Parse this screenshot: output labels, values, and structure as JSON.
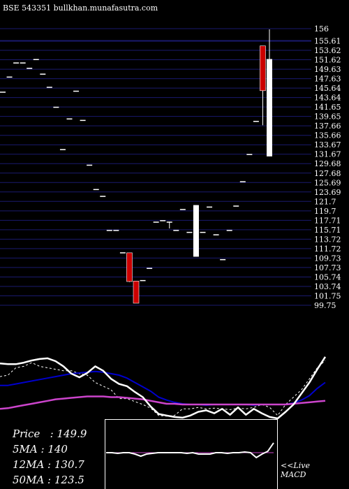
{
  "header": {
    "title": "BSE 543351 bullkhan.munafasutra.com"
  },
  "info": {
    "price": "Price   : 149.9",
    "ma5": "5MA : 140",
    "ma12": "12MA : 130.7",
    "ma50": "50MA : 123.5"
  },
  "macd_labels": {
    "live": "<<Live",
    "macd": "MACD"
  },
  "colors": {
    "background": "#000000",
    "grid": "#1a1a6e",
    "up_candle": "#ffffff",
    "down_candle": "#cc0000",
    "ma_fast": "#0000cc",
    "ma_slow": "#cc44cc",
    "signal": "#ffffff"
  },
  "chart_data": [
    {
      "type": "candlestick",
      "title": "BSE 543351 bullkhan.munafasutra.com",
      "ylim": [
        99.75,
        156
      ],
      "y_tick_labels": [
        "156",
        "155.61",
        "153.62",
        "151.62",
        "149.63",
        "147.63",
        "145.64",
        "143.64",
        "141.65",
        "139.65",
        "137.66",
        "135.66",
        "133.67",
        "131.67",
        "129.68",
        "127.68",
        "125.69",
        "123.69",
        "121.7",
        "119.7",
        "117.71",
        "115.71",
        "113.72",
        "111.72",
        "109.73",
        "107.73",
        "105.74",
        "103.74",
        "101.75",
        "99.75"
      ],
      "grid": true,
      "sessions": [
        {
          "o": 143.2,
          "h": 143.2,
          "l": 143.2,
          "c": 143.2
        },
        {
          "o": 146.3,
          "h": 146.3,
          "l": 146.3,
          "c": 146.3
        },
        {
          "o": 149.2,
          "h": 149.2,
          "l": 149.2,
          "c": 149.2
        },
        {
          "o": 149.2,
          "h": 149.2,
          "l": 149.2,
          "c": 149.2
        },
        {
          "o": 148.1,
          "h": 148.1,
          "l": 148.1,
          "c": 148.1
        },
        {
          "o": 149.9,
          "h": 149.9,
          "l": 149.9,
          "c": 149.9
        },
        {
          "o": 146.9,
          "h": 146.9,
          "l": 146.9,
          "c": 146.9
        },
        {
          "o": 144.2,
          "h": 144.2,
          "l": 144.2,
          "c": 144.2
        },
        {
          "o": 140.1,
          "h": 140.1,
          "l": 140.1,
          "c": 140.1
        },
        {
          "o": 131.4,
          "h": 131.4,
          "l": 131.4,
          "c": 131.4
        },
        {
          "o": 137.7,
          "h": 137.7,
          "l": 137.7,
          "c": 137.7
        },
        {
          "o": 143.4,
          "h": 143.4,
          "l": 143.4,
          "c": 143.4
        },
        {
          "o": 137.4,
          "h": 137.4,
          "l": 137.4,
          "c": 137.4
        },
        {
          "o": 128.2,
          "h": 128.2,
          "l": 128.2,
          "c": 128.2
        },
        {
          "o": 123.2,
          "h": 123.2,
          "l": 123.2,
          "c": 123.2
        },
        {
          "o": 121.8,
          "h": 121.8,
          "l": 121.8,
          "c": 121.8
        },
        {
          "o": 114.8,
          "h": 114.8,
          "l": 114.8,
          "c": 114.8
        },
        {
          "o": 114.8,
          "h": 114.8,
          "l": 114.8,
          "c": 114.8
        },
        {
          "o": 110.2,
          "h": 110.2,
          "l": 110.2,
          "c": 110.2
        },
        {
          "o": 110.1,
          "h": 110.1,
          "l": 104.1,
          "c": 104.2
        },
        {
          "o": 104.3,
          "h": 104.3,
          "l": 99.75,
          "c": 99.75
        },
        {
          "o": 104.5,
          "h": 104.5,
          "l": 104.5,
          "c": 104.5
        },
        {
          "o": 107.0,
          "h": 107.0,
          "l": 107.0,
          "c": 107.0
        },
        {
          "o": 116.5,
          "h": 116.5,
          "l": 116.5,
          "c": 116.5
        },
        {
          "o": 116.8,
          "h": 116.8,
          "l": 116.8,
          "c": 116.8
        },
        {
          "o": 116.5,
          "h": 116.5,
          "l": 115.1,
          "c": 116.5
        },
        {
          "o": 114.8,
          "h": 114.8,
          "l": 114.8,
          "c": 114.8
        },
        {
          "o": 119.1,
          "h": 119.1,
          "l": 119.1,
          "c": 119.1
        },
        {
          "o": 114.4,
          "h": 114.4,
          "l": 114.4,
          "c": 114.4
        },
        {
          "o": 109.3,
          "h": 119.9,
          "l": 109.3,
          "c": 119.9
        },
        {
          "o": 114.4,
          "h": 114.4,
          "l": 114.4,
          "c": 114.4
        },
        {
          "o": 119.6,
          "h": 119.6,
          "l": 119.6,
          "c": 119.6
        },
        {
          "o": 113.9,
          "h": 113.9,
          "l": 113.9,
          "c": 113.9
        },
        {
          "o": 108.8,
          "h": 108.8,
          "l": 108.8,
          "c": 108.8
        },
        {
          "o": 114.8,
          "h": 114.8,
          "l": 114.8,
          "c": 114.8
        },
        {
          "o": 119.8,
          "h": 119.8,
          "l": 119.8,
          "c": 119.8
        },
        {
          "o": 124.8,
          "h": 124.8,
          "l": 124.8,
          "c": 124.8
        },
        {
          "o": 130.4,
          "h": 130.4,
          "l": 130.4,
          "c": 130.4
        },
        {
          "o": 137.2,
          "h": 137.2,
          "l": 137.2,
          "c": 137.2
        },
        {
          "o": 152.6,
          "h": 152.6,
          "l": 136.3,
          "c": 143.4
        },
        {
          "o": 129.9,
          "h": 156,
          "l": 129.9,
          "c": 149.9
        }
      ]
    },
    {
      "type": "line",
      "title": "Moving averages",
      "ylim": [
        0,
        100
      ],
      "series": [
        {
          "values": [
            58,
            60,
            70,
            72,
            77,
            72,
            70,
            68,
            66,
            66,
            62,
            60,
            50,
            45,
            40,
            28,
            28,
            24,
            20,
            15,
            5,
            4,
            5,
            14,
            14,
            16,
            14,
            15,
            14,
            13,
            15,
            14,
            16,
            20,
            16,
            5,
            20,
            30,
            40,
            55,
            70,
            80
          ]
        },
        {
          "values": [
            46,
            46,
            48,
            50,
            52,
            54,
            56,
            58,
            60,
            62,
            63,
            64,
            65,
            64,
            62,
            60,
            56,
            50,
            44,
            38,
            30,
            26,
            23,
            21,
            20,
            20,
            19,
            20,
            20,
            20,
            20,
            20,
            19,
            20,
            20,
            20,
            20,
            22,
            26,
            32,
            42,
            50
          ]
        },
        {
          "values": [
            14,
            15,
            17,
            19,
            21,
            23,
            25,
            27,
            28,
            29,
            30,
            31,
            31,
            31,
            30,
            30,
            29,
            28,
            27,
            25,
            23,
            21,
            21,
            20,
            20,
            20,
            20,
            20,
            20,
            20,
            20,
            20,
            20,
            20,
            20,
            20,
            20,
            21,
            22,
            23,
            24,
            25
          ]
        },
        {
          "values": [
            76,
            75,
            75,
            77,
            80,
            82,
            83,
            79,
            72,
            62,
            57,
            63,
            72,
            66,
            55,
            48,
            45,
            37,
            30,
            17,
            7,
            5,
            3,
            2,
            5,
            10,
            12,
            8,
            14,
            6,
            16,
            6,
            14,
            8,
            3,
            1,
            10,
            20,
            35,
            50,
            68,
            85
          ]
        }
      ]
    },
    {
      "type": "line",
      "title": "MACD",
      "ylim": [
        0,
        100
      ],
      "series": [
        {
          "values": [
            52,
            52,
            51,
            52,
            52,
            50,
            47,
            50,
            51,
            52,
            52,
            52,
            52,
            52,
            51,
            52,
            50,
            50,
            50,
            52,
            52,
            51,
            52,
            52,
            53,
            52,
            45,
            50,
            54,
            66
          ]
        },
        {
          "values": [
            52,
            52,
            52,
            52,
            52,
            52,
            52,
            52,
            52,
            52,
            52,
            52,
            52,
            52,
            52,
            52,
            52,
            52,
            52,
            52,
            52,
            52,
            52,
            52,
            52,
            52,
            52,
            52,
            52,
            52
          ]
        }
      ]
    }
  ]
}
